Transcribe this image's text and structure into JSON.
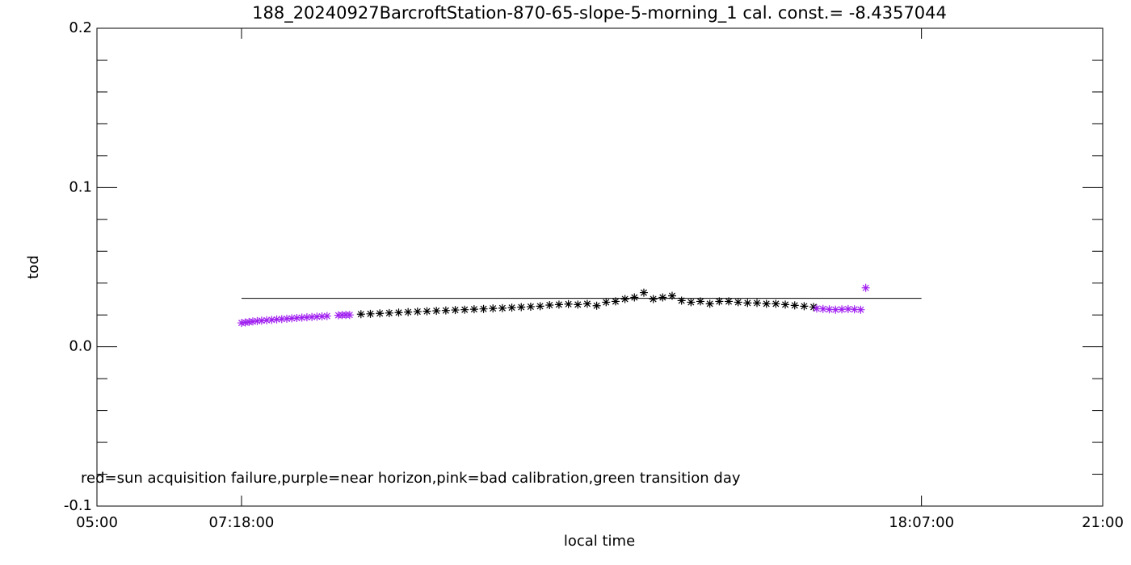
{
  "chart_data": {
    "type": "scatter",
    "title": "188_20240927BarcroftStation-870-65-slope-5-morning_1 cal. const.= -8.4357044",
    "xlabel": "local time",
    "ylabel": "tod",
    "annotation": "red=sun acquisition failure,purple=near horizon,pink=bad calibration,green transition day",
    "xlim": [
      5,
      21
    ],
    "ylim": [
      -0.1,
      0.2
    ],
    "xticks": [
      {
        "value": 5,
        "label": "05:00"
      },
      {
        "value": 7.3,
        "label": "07:18:00"
      },
      {
        "value": 18.1167,
        "label": "18:07:00"
      },
      {
        "value": 21,
        "label": "21:00"
      }
    ],
    "yticks": [
      {
        "value": -0.1,
        "label": "-0.1"
      },
      {
        "value": 0,
        "label": "0.0"
      },
      0.1,
      0.2
    ],
    "yminorticks": [
      -0.08,
      -0.06,
      -0.04,
      -0.02,
      0.02,
      0.04,
      0.06,
      0.08,
      0.12,
      0.14,
      0.16,
      0.18
    ],
    "hline": {
      "y": 0.0304,
      "x": [
        7.3,
        18.1167
      ],
      "color": "#000000"
    },
    "series": [
      {
        "color": "#a020f0",
        "x": [
          7.3,
          7.36,
          7.42,
          7.48,
          7.55,
          7.62,
          7.7,
          7.78,
          7.86,
          7.94,
          8.02,
          8.1,
          8.18,
          8.26,
          8.34,
          8.42,
          8.5,
          8.58,
          8.66,
          8.84,
          8.9,
          8.96,
          9.02
        ],
        "values": [
          0.015,
          0.0153,
          0.0156,
          0.0159,
          0.0162,
          0.0164,
          0.0167,
          0.0169,
          0.0172,
          0.0174,
          0.0176,
          0.0179,
          0.0181,
          0.0183,
          0.0185,
          0.0187,
          0.0189,
          0.0191,
          0.0193,
          0.0198,
          0.0199,
          0.02,
          0.02
        ]
      },
      {
        "color": "#000000",
        "x": [
          9.2,
          9.35,
          9.5,
          9.65,
          9.8,
          9.95,
          10.1,
          10.25,
          10.4,
          10.55,
          10.7,
          10.85,
          11.0,
          11.15,
          11.3,
          11.45,
          11.6,
          11.75,
          11.9,
          12.05,
          12.2,
          12.35,
          12.5,
          12.65,
          12.8,
          12.95,
          13.1,
          13.25,
          13.4,
          13.55,
          13.7,
          13.85,
          14.0,
          14.15,
          14.3,
          14.45,
          14.6,
          14.75,
          14.9,
          15.05,
          15.2,
          15.35,
          15.5,
          15.65,
          15.8,
          15.95,
          16.1,
          16.25,
          16.4
        ],
        "values": [
          0.0205,
          0.0207,
          0.021,
          0.0212,
          0.0215,
          0.0218,
          0.0221,
          0.0223,
          0.0226,
          0.0228,
          0.0231,
          0.0233,
          0.0236,
          0.0238,
          0.0241,
          0.0243,
          0.0246,
          0.0249,
          0.0252,
          0.0255,
          0.0262,
          0.0265,
          0.0268,
          0.0265,
          0.027,
          0.0258,
          0.028,
          0.0285,
          0.03,
          0.031,
          0.034,
          0.03,
          0.031,
          0.032,
          0.029,
          0.028,
          0.0285,
          0.027,
          0.0285,
          0.0285,
          0.028,
          0.0275,
          0.0275,
          0.027,
          0.027,
          0.0265,
          0.026,
          0.0255,
          0.025
        ]
      },
      {
        "color": "#a020f0",
        "x": [
          16.45,
          16.55,
          16.65,
          16.75,
          16.85,
          16.95,
          17.05,
          17.15,
          17.23
        ],
        "values": [
          0.024,
          0.0238,
          0.0235,
          0.0233,
          0.0235,
          0.0237,
          0.0235,
          0.0233,
          0.037
        ]
      }
    ]
  }
}
